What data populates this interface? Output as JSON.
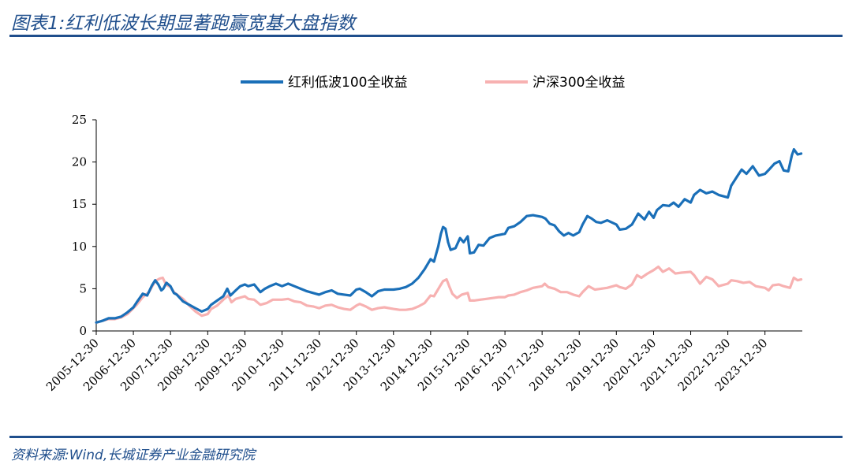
{
  "header": {
    "title": "图表1:红利低波长期显著跑赢宽基大盘指数"
  },
  "footer": {
    "source": "资料来源:Wind,长城证券产业金融研究院"
  },
  "colors": {
    "brand": "#1f4e8c",
    "series1": "#1a6fb8",
    "series2": "#f7b1b1"
  },
  "chart_data": {
    "type": "line",
    "title": "",
    "xlabel": "",
    "ylabel": "",
    "ylim": [
      0,
      25
    ],
    "yticks": [
      0,
      5,
      10,
      15,
      20,
      25
    ],
    "xlim": [
      "2005-12-30",
      "2024-12-31"
    ],
    "xticks": [
      "2005-12-30",
      "2006-12-30",
      "2007-12-30",
      "2008-12-30",
      "2009-12-30",
      "2010-12-30",
      "2011-12-30",
      "2012-12-30",
      "2013-12-30",
      "2014-12-30",
      "2015-12-30",
      "2016-12-30",
      "2017-12-30",
      "2018-12-30",
      "2019-12-30",
      "2020-12-30",
      "2021-12-30",
      "2022-12-30",
      "2023-12-30"
    ],
    "legend_position": "top-center",
    "grid": false,
    "series": [
      {
        "name": "红利低波100全收益",
        "color": "#1a6fb8",
        "points": [
          [
            "2005-12-30",
            1.0
          ],
          [
            "2006-03-01",
            1.2
          ],
          [
            "2006-05-01",
            1.5
          ],
          [
            "2006-07-01",
            1.5
          ],
          [
            "2006-09-01",
            1.7
          ],
          [
            "2006-11-01",
            2.2
          ],
          [
            "2006-12-30",
            2.8
          ],
          [
            "2007-02-01",
            3.4
          ],
          [
            "2007-04-01",
            4.4
          ],
          [
            "2007-05-15",
            4.2
          ],
          [
            "2007-07-01",
            5.4
          ],
          [
            "2007-08-01",
            6.0
          ],
          [
            "2007-09-01",
            5.5
          ],
          [
            "2007-10-01",
            4.8
          ],
          [
            "2007-10-20",
            5.0
          ],
          [
            "2007-11-20",
            5.7
          ],
          [
            "2007-12-30",
            5.3
          ],
          [
            "2008-02-01",
            4.5
          ],
          [
            "2008-03-01",
            4.3
          ],
          [
            "2008-05-01",
            3.5
          ],
          [
            "2008-07-01",
            3.1
          ],
          [
            "2008-09-01",
            2.7
          ],
          [
            "2008-11-01",
            2.3
          ],
          [
            "2008-12-30",
            2.6
          ],
          [
            "2009-02-01",
            3.1
          ],
          [
            "2009-04-01",
            3.6
          ],
          [
            "2009-06-01",
            4.1
          ],
          [
            "2009-07-10",
            5.0
          ],
          [
            "2009-08-10",
            4.2
          ],
          [
            "2009-10-01",
            4.8
          ],
          [
            "2009-11-15",
            5.3
          ],
          [
            "2009-12-30",
            5.5
          ],
          [
            "2010-02-01",
            5.3
          ],
          [
            "2010-04-01",
            5.5
          ],
          [
            "2010-06-01",
            4.6
          ],
          [
            "2010-07-15",
            5.0
          ],
          [
            "2010-09-01",
            5.3
          ],
          [
            "2010-11-01",
            5.6
          ],
          [
            "2010-12-30",
            5.3
          ],
          [
            "2011-03-01",
            5.6
          ],
          [
            "2011-05-01",
            5.3
          ],
          [
            "2011-07-01",
            5.0
          ],
          [
            "2011-09-01",
            4.7
          ],
          [
            "2011-11-01",
            4.5
          ],
          [
            "2011-12-30",
            4.3
          ],
          [
            "2012-03-01",
            4.6
          ],
          [
            "2012-05-01",
            4.8
          ],
          [
            "2012-07-01",
            4.4
          ],
          [
            "2012-09-01",
            4.3
          ],
          [
            "2012-11-01",
            4.2
          ],
          [
            "2012-12-30",
            4.9
          ],
          [
            "2013-02-01",
            5.0
          ],
          [
            "2013-04-01",
            4.6
          ],
          [
            "2013-06-01",
            4.1
          ],
          [
            "2013-08-01",
            4.7
          ],
          [
            "2013-10-01",
            4.9
          ],
          [
            "2013-12-30",
            4.9
          ],
          [
            "2014-03-01",
            5.0
          ],
          [
            "2014-05-01",
            5.2
          ],
          [
            "2014-07-01",
            5.6
          ],
          [
            "2014-09-01",
            6.3
          ],
          [
            "2014-11-01",
            7.3
          ],
          [
            "2014-12-30",
            8.5
          ],
          [
            "2015-02-01",
            8.2
          ],
          [
            "2015-03-15",
            10.0
          ],
          [
            "2015-04-10",
            11.5
          ],
          [
            "2015-05-01",
            12.3
          ],
          [
            "2015-05-25",
            12.1
          ],
          [
            "2015-06-20",
            10.5
          ],
          [
            "2015-07-15",
            9.6
          ],
          [
            "2015-09-01",
            9.8
          ],
          [
            "2015-10-15",
            11.0
          ],
          [
            "2015-11-20",
            10.5
          ],
          [
            "2015-12-30",
            11.2
          ],
          [
            "2016-01-20",
            9.2
          ],
          [
            "2016-03-01",
            9.3
          ],
          [
            "2016-04-15",
            10.2
          ],
          [
            "2016-06-01",
            10.1
          ],
          [
            "2016-08-01",
            11.0
          ],
          [
            "2016-10-01",
            11.3
          ],
          [
            "2016-12-30",
            11.5
          ],
          [
            "2017-02-01",
            12.2
          ],
          [
            "2017-04-01",
            12.4
          ],
          [
            "2017-06-01",
            12.9
          ],
          [
            "2017-08-01",
            13.6
          ],
          [
            "2017-10-01",
            13.7
          ],
          [
            "2017-12-30",
            13.5
          ],
          [
            "2018-02-01",
            13.3
          ],
          [
            "2018-03-15",
            12.7
          ],
          [
            "2018-05-01",
            12.5
          ],
          [
            "2018-06-15",
            11.8
          ],
          [
            "2018-08-01",
            11.3
          ],
          [
            "2018-09-15",
            11.6
          ],
          [
            "2018-11-01",
            11.3
          ],
          [
            "2018-12-30",
            11.7
          ],
          [
            "2019-02-01",
            12.6
          ],
          [
            "2019-03-20",
            13.6
          ],
          [
            "2019-05-01",
            13.3
          ],
          [
            "2019-06-15",
            12.9
          ],
          [
            "2019-08-01",
            12.8
          ],
          [
            "2019-10-01",
            13.1
          ],
          [
            "2019-12-30",
            12.6
          ],
          [
            "2020-02-01",
            12.0
          ],
          [
            "2020-04-01",
            12.1
          ],
          [
            "2020-06-01",
            12.6
          ],
          [
            "2020-08-01",
            13.9
          ],
          [
            "2020-10-01",
            13.2
          ],
          [
            "2020-11-15",
            14.1
          ],
          [
            "2020-12-30",
            13.4
          ],
          [
            "2021-02-01",
            14.3
          ],
          [
            "2021-04-01",
            14.9
          ],
          [
            "2021-06-01",
            14.8
          ],
          [
            "2021-07-15",
            15.2
          ],
          [
            "2021-09-01",
            14.7
          ],
          [
            "2021-11-01",
            15.6
          ],
          [
            "2021-12-30",
            15.2
          ],
          [
            "2022-02-01",
            16.1
          ],
          [
            "2022-04-01",
            16.7
          ],
          [
            "2022-06-01",
            16.3
          ],
          [
            "2022-08-01",
            16.5
          ],
          [
            "2022-10-01",
            16.1
          ],
          [
            "2022-12-30",
            15.8
          ],
          [
            "2023-02-01",
            17.2
          ],
          [
            "2023-04-01",
            18.3
          ],
          [
            "2023-05-15",
            19.1
          ],
          [
            "2023-07-01",
            18.6
          ],
          [
            "2023-09-01",
            19.5
          ],
          [
            "2023-11-01",
            18.4
          ],
          [
            "2023-12-30",
            18.6
          ],
          [
            "2024-02-01",
            19.0
          ],
          [
            "2024-04-01",
            19.8
          ],
          [
            "2024-05-20",
            20.1
          ],
          [
            "2024-07-01",
            19.0
          ],
          [
            "2024-08-15",
            18.9
          ],
          [
            "2024-09-20",
            20.8
          ],
          [
            "2024-10-10",
            21.5
          ],
          [
            "2024-11-15",
            20.9
          ],
          [
            "2024-12-20",
            21.0
          ]
        ]
      },
      {
        "name": "沪深300全收益",
        "color": "#f7b1b1",
        "points": [
          [
            "2005-12-30",
            1.0
          ],
          [
            "2006-03-01",
            1.2
          ],
          [
            "2006-05-01",
            1.4
          ],
          [
            "2006-07-01",
            1.4
          ],
          [
            "2006-09-01",
            1.6
          ],
          [
            "2006-11-01",
            2.0
          ],
          [
            "2006-12-30",
            2.7
          ],
          [
            "2007-02-01",
            3.1
          ],
          [
            "2007-04-01",
            4.0
          ],
          [
            "2007-06-01",
            4.6
          ],
          [
            "2007-08-01",
            5.9
          ],
          [
            "2007-09-15",
            6.2
          ],
          [
            "2007-10-15",
            6.3
          ],
          [
            "2007-11-15",
            5.5
          ],
          [
            "2007-12-30",
            5.2
          ],
          [
            "2008-02-01",
            4.6
          ],
          [
            "2008-03-15",
            4.2
          ],
          [
            "2008-05-01",
            3.8
          ],
          [
            "2008-07-01",
            3.0
          ],
          [
            "2008-09-01",
            2.3
          ],
          [
            "2008-11-01",
            1.8
          ],
          [
            "2008-12-30",
            2.0
          ],
          [
            "2009-02-01",
            2.6
          ],
          [
            "2009-04-01",
            3.0
          ],
          [
            "2009-06-01",
            3.7
          ],
          [
            "2009-07-20",
            4.2
          ],
          [
            "2009-08-20",
            3.4
          ],
          [
            "2009-10-01",
            3.8
          ],
          [
            "2009-12-30",
            4.1
          ],
          [
            "2010-02-01",
            3.8
          ],
          [
            "2010-04-01",
            3.7
          ],
          [
            "2010-06-01",
            3.1
          ],
          [
            "2010-08-01",
            3.3
          ],
          [
            "2010-10-01",
            3.7
          ],
          [
            "2010-12-30",
            3.7
          ],
          [
            "2011-03-01",
            3.8
          ],
          [
            "2011-05-01",
            3.5
          ],
          [
            "2011-07-01",
            3.4
          ],
          [
            "2011-09-01",
            3.0
          ],
          [
            "2011-11-01",
            2.9
          ],
          [
            "2011-12-30",
            2.7
          ],
          [
            "2012-03-01",
            3.0
          ],
          [
            "2012-05-01",
            3.1
          ],
          [
            "2012-07-01",
            2.8
          ],
          [
            "2012-09-01",
            2.6
          ],
          [
            "2012-11-01",
            2.5
          ],
          [
            "2012-12-30",
            3.0
          ],
          [
            "2013-02-01",
            3.2
          ],
          [
            "2013-04-01",
            2.9
          ],
          [
            "2013-06-01",
            2.5
          ],
          [
            "2013-08-01",
            2.7
          ],
          [
            "2013-10-01",
            2.8
          ],
          [
            "2013-12-30",
            2.6
          ],
          [
            "2014-03-01",
            2.5
          ],
          [
            "2014-05-01",
            2.5
          ],
          [
            "2014-07-01",
            2.6
          ],
          [
            "2014-09-01",
            2.9
          ],
          [
            "2014-11-01",
            3.3
          ],
          [
            "2014-12-30",
            4.2
          ],
          [
            "2015-02-01",
            4.1
          ],
          [
            "2015-04-01",
            5.3
          ],
          [
            "2015-05-01",
            5.9
          ],
          [
            "2015-06-05",
            6.1
          ],
          [
            "2015-07-01",
            5.3
          ],
          [
            "2015-08-01",
            4.4
          ],
          [
            "2015-09-15",
            3.9
          ],
          [
            "2015-11-01",
            4.3
          ],
          [
            "2015-12-30",
            4.5
          ],
          [
            "2016-01-20",
            3.6
          ],
          [
            "2016-03-01",
            3.6
          ],
          [
            "2016-05-01",
            3.7
          ],
          [
            "2016-07-01",
            3.8
          ],
          [
            "2016-09-01",
            3.9
          ],
          [
            "2016-11-01",
            4.0
          ],
          [
            "2016-12-30",
            4.0
          ],
          [
            "2017-02-01",
            4.2
          ],
          [
            "2017-04-01",
            4.3
          ],
          [
            "2017-06-01",
            4.6
          ],
          [
            "2017-08-01",
            4.8
          ],
          [
            "2017-10-01",
            5.1
          ],
          [
            "2017-12-30",
            5.3
          ],
          [
            "2018-01-25",
            5.6
          ],
          [
            "2018-03-01",
            5.2
          ],
          [
            "2018-05-01",
            5.0
          ],
          [
            "2018-07-01",
            4.6
          ],
          [
            "2018-09-01",
            4.6
          ],
          [
            "2018-11-01",
            4.3
          ],
          [
            "2018-12-30",
            4.1
          ],
          [
            "2019-02-01",
            4.6
          ],
          [
            "2019-04-01",
            5.3
          ],
          [
            "2019-06-01",
            4.9
          ],
          [
            "2019-08-01",
            5.0
          ],
          [
            "2019-10-01",
            5.1
          ],
          [
            "2019-12-30",
            5.4
          ],
          [
            "2020-02-01",
            5.2
          ],
          [
            "2020-04-01",
            5.0
          ],
          [
            "2020-06-01",
            5.5
          ],
          [
            "2020-07-20",
            6.6
          ],
          [
            "2020-09-01",
            6.3
          ],
          [
            "2020-11-01",
            6.8
          ],
          [
            "2020-12-30",
            7.2
          ],
          [
            "2021-02-15",
            7.6
          ],
          [
            "2021-04-01",
            7.0
          ],
          [
            "2021-06-01",
            7.4
          ],
          [
            "2021-08-01",
            6.8
          ],
          [
            "2021-10-01",
            6.9
          ],
          [
            "2021-12-30",
            7.0
          ],
          [
            "2022-02-01",
            6.6
          ],
          [
            "2022-04-01",
            5.6
          ],
          [
            "2022-06-01",
            6.4
          ],
          [
            "2022-08-01",
            6.1
          ],
          [
            "2022-10-01",
            5.3
          ],
          [
            "2022-12-30",
            5.6
          ],
          [
            "2023-02-01",
            6.0
          ],
          [
            "2023-04-01",
            5.9
          ],
          [
            "2023-06-01",
            5.7
          ],
          [
            "2023-08-01",
            5.8
          ],
          [
            "2023-10-01",
            5.3
          ],
          [
            "2023-12-30",
            5.1
          ],
          [
            "2024-02-05",
            4.8
          ],
          [
            "2024-03-15",
            5.4
          ],
          [
            "2024-05-15",
            5.5
          ],
          [
            "2024-07-01",
            5.3
          ],
          [
            "2024-09-01",
            5.1
          ],
          [
            "2024-10-08",
            6.3
          ],
          [
            "2024-11-15",
            6.0
          ],
          [
            "2024-12-20",
            6.1
          ]
        ]
      }
    ]
  }
}
